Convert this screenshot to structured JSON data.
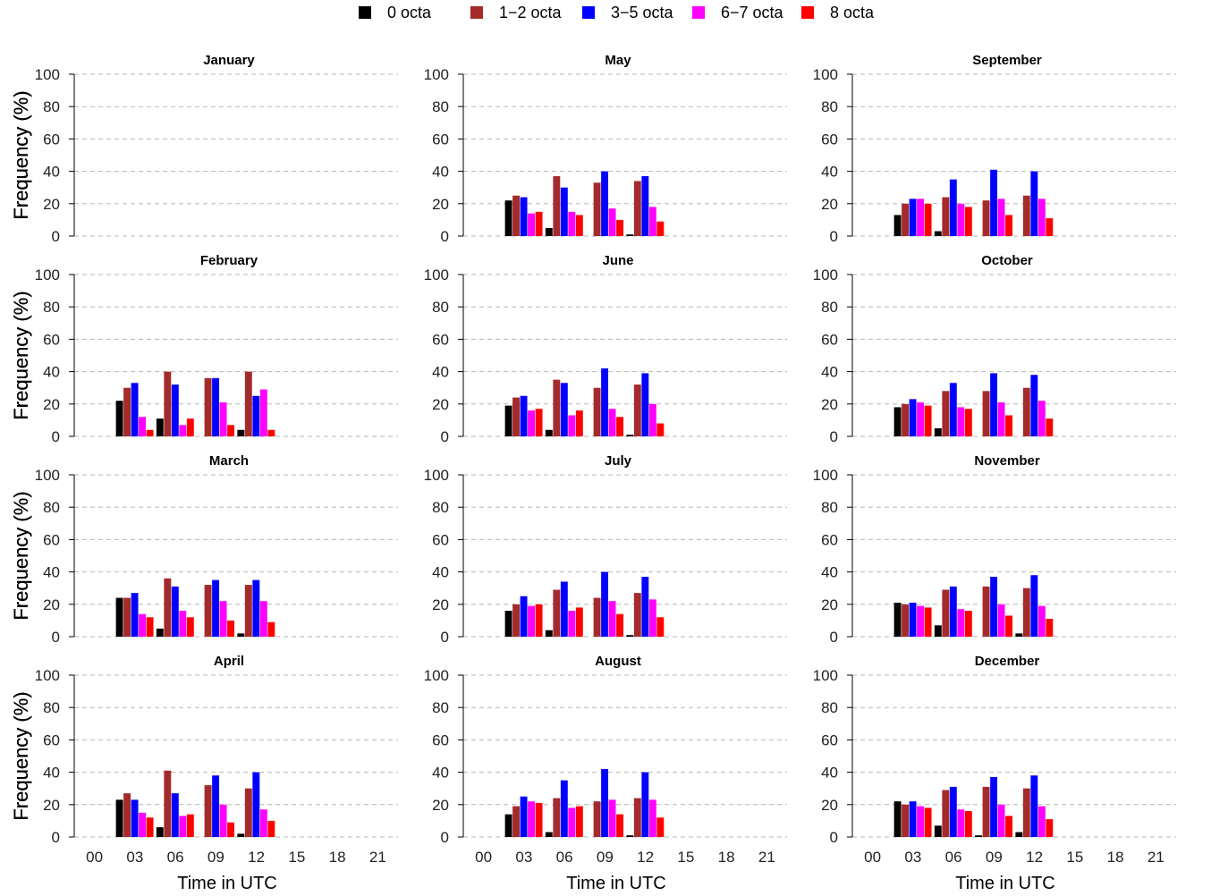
{
  "legend": {
    "placement": "top-center",
    "items": [
      {
        "label": "0 octa",
        "color": "#000000"
      },
      {
        "label": "1−2 octa",
        "color": "#a52a2a"
      },
      {
        "label": "3−5 octa",
        "color": "#0000ff"
      },
      {
        "label": "6−7 octa",
        "color": "#ff00ff"
      },
      {
        "label": "8 octa",
        "color": "#ff0000"
      }
    ]
  },
  "axes": {
    "ylabel": "Frequency (%)",
    "xlabel": "Time in UTC",
    "ylim": [
      0,
      100
    ],
    "yticks": [
      0,
      20,
      40,
      60,
      80,
      100
    ],
    "xticks": [
      "00",
      "03",
      "06",
      "09",
      "12",
      "15",
      "18",
      "21"
    ]
  },
  "chart_data": [
    {
      "type": "bar",
      "title": "January",
      "categories": [
        "00",
        "03",
        "06",
        "09",
        "12",
        "15",
        "18",
        "21"
      ],
      "series": []
    },
    {
      "type": "bar",
      "title": "February",
      "categories": [
        "00",
        "03",
        "06",
        "09",
        "12",
        "15",
        "18",
        "21"
      ],
      "series": [
        {
          "name": "0 octa",
          "values": [
            null,
            22,
            11,
            0,
            4,
            null,
            null,
            null
          ]
        },
        {
          "name": "1−2 octa",
          "values": [
            null,
            30,
            40,
            36,
            40,
            null,
            null,
            null
          ]
        },
        {
          "name": "3−5 octa",
          "values": [
            null,
            33,
            32,
            36,
            25,
            null,
            null,
            null
          ]
        },
        {
          "name": "6−7 octa",
          "values": [
            null,
            12,
            7,
            21,
            29,
            null,
            null,
            null
          ]
        },
        {
          "name": "8 octa",
          "values": [
            null,
            4,
            11,
            7,
            4,
            null,
            null,
            null
          ]
        }
      ]
    },
    {
      "type": "bar",
      "title": "March",
      "categories": [
        "00",
        "03",
        "06",
        "09",
        "12",
        "15",
        "18",
        "21"
      ],
      "series": [
        {
          "name": "0 octa",
          "values": [
            null,
            24,
            5,
            0,
            2,
            null,
            null,
            null
          ]
        },
        {
          "name": "1−2 octa",
          "values": [
            null,
            24,
            36,
            32,
            32,
            null,
            null,
            null
          ]
        },
        {
          "name": "3−5 octa",
          "values": [
            null,
            27,
            31,
            35,
            35,
            null,
            null,
            null
          ]
        },
        {
          "name": "6−7 octa",
          "values": [
            null,
            14,
            16,
            22,
            22,
            null,
            null,
            null
          ]
        },
        {
          "name": "8 octa",
          "values": [
            null,
            12,
            12,
            10,
            9,
            null,
            null,
            null
          ]
        }
      ]
    },
    {
      "type": "bar",
      "title": "April",
      "categories": [
        "00",
        "03",
        "06",
        "09",
        "12",
        "15",
        "18",
        "21"
      ],
      "series": [
        {
          "name": "0 octa",
          "values": [
            null,
            23,
            6,
            0,
            2,
            null,
            null,
            null
          ]
        },
        {
          "name": "1−2 octa",
          "values": [
            null,
            27,
            41,
            32,
            30,
            null,
            null,
            null
          ]
        },
        {
          "name": "3−5 octa",
          "values": [
            null,
            23,
            27,
            38,
            40,
            null,
            null,
            null
          ]
        },
        {
          "name": "6−7 octa",
          "values": [
            null,
            15,
            13,
            20,
            17,
            null,
            null,
            null
          ]
        },
        {
          "name": "8 octa",
          "values": [
            null,
            12,
            14,
            9,
            10,
            null,
            null,
            null
          ]
        }
      ]
    },
    {
      "type": "bar",
      "title": "May",
      "categories": [
        "00",
        "03",
        "06",
        "09",
        "12",
        "15",
        "18",
        "21"
      ],
      "series": [
        {
          "name": "0 octa",
          "values": [
            null,
            22,
            5,
            0,
            1,
            null,
            null,
            null
          ]
        },
        {
          "name": "1−2 octa",
          "values": [
            null,
            25,
            37,
            33,
            34,
            null,
            null,
            null
          ]
        },
        {
          "name": "3−5 octa",
          "values": [
            null,
            24,
            30,
            40,
            37,
            null,
            null,
            null
          ]
        },
        {
          "name": "6−7 octa",
          "values": [
            null,
            14,
            15,
            17,
            18,
            null,
            null,
            null
          ]
        },
        {
          "name": "8 octa",
          "values": [
            null,
            15,
            13,
            10,
            9,
            null,
            null,
            null
          ]
        }
      ]
    },
    {
      "type": "bar",
      "title": "June",
      "categories": [
        "00",
        "03",
        "06",
        "09",
        "12",
        "15",
        "18",
        "21"
      ],
      "series": [
        {
          "name": "0 octa",
          "values": [
            null,
            19,
            4,
            0,
            1,
            null,
            null,
            null
          ]
        },
        {
          "name": "1−2 octa",
          "values": [
            null,
            24,
            35,
            30,
            32,
            null,
            null,
            null
          ]
        },
        {
          "name": "3−5 octa",
          "values": [
            null,
            25,
            33,
            42,
            39,
            null,
            null,
            null
          ]
        },
        {
          "name": "6−7 octa",
          "values": [
            null,
            16,
            13,
            17,
            20,
            null,
            null,
            null
          ]
        },
        {
          "name": "8 octa",
          "values": [
            null,
            17,
            16,
            12,
            8,
            null,
            null,
            null
          ]
        }
      ]
    },
    {
      "type": "bar",
      "title": "July",
      "categories": [
        "00",
        "03",
        "06",
        "09",
        "12",
        "15",
        "18",
        "21"
      ],
      "series": [
        {
          "name": "0 octa",
          "values": [
            null,
            16,
            4,
            0,
            1,
            null,
            null,
            null
          ]
        },
        {
          "name": "1−2 octa",
          "values": [
            null,
            20,
            29,
            24,
            27,
            null,
            null,
            null
          ]
        },
        {
          "name": "3−5 octa",
          "values": [
            null,
            25,
            34,
            40,
            37,
            null,
            null,
            null
          ]
        },
        {
          "name": "6−7 octa",
          "values": [
            null,
            19,
            16,
            22,
            23,
            null,
            null,
            null
          ]
        },
        {
          "name": "8 octa",
          "values": [
            null,
            20,
            18,
            14,
            12,
            null,
            null,
            null
          ]
        }
      ]
    },
    {
      "type": "bar",
      "title": "August",
      "categories": [
        "00",
        "03",
        "06",
        "09",
        "12",
        "15",
        "18",
        "21"
      ],
      "series": [
        {
          "name": "0 octa",
          "values": [
            null,
            14,
            3,
            0,
            1,
            null,
            null,
            null
          ]
        },
        {
          "name": "1−2 octa",
          "values": [
            null,
            19,
            24,
            22,
            24,
            null,
            null,
            null
          ]
        },
        {
          "name": "3−5 octa",
          "values": [
            null,
            25,
            35,
            42,
            40,
            null,
            null,
            null
          ]
        },
        {
          "name": "6−7 octa",
          "values": [
            null,
            22,
            18,
            23,
            23,
            null,
            null,
            null
          ]
        },
        {
          "name": "8 octa",
          "values": [
            null,
            21,
            19,
            14,
            12,
            null,
            null,
            null
          ]
        }
      ]
    },
    {
      "type": "bar",
      "title": "September",
      "categories": [
        "00",
        "03",
        "06",
        "09",
        "12",
        "15",
        "18",
        "21"
      ],
      "series": [
        {
          "name": "0 octa",
          "values": [
            null,
            13,
            3,
            0,
            0,
            null,
            null,
            null
          ]
        },
        {
          "name": "1−2 octa",
          "values": [
            null,
            20,
            24,
            22,
            25,
            null,
            null,
            null
          ]
        },
        {
          "name": "3−5 octa",
          "values": [
            null,
            23,
            35,
            41,
            40,
            null,
            null,
            null
          ]
        },
        {
          "name": "6−7 octa",
          "values": [
            null,
            23,
            20,
            23,
            23,
            null,
            null,
            null
          ]
        },
        {
          "name": "8 octa",
          "values": [
            null,
            20,
            18,
            13,
            11,
            null,
            null,
            null
          ]
        }
      ]
    },
    {
      "type": "bar",
      "title": "October",
      "categories": [
        "00",
        "03",
        "06",
        "09",
        "12",
        "15",
        "18",
        "21"
      ],
      "series": [
        {
          "name": "0 octa",
          "values": [
            null,
            18,
            5,
            0,
            0,
            null,
            null,
            null
          ]
        },
        {
          "name": "1−2 octa",
          "values": [
            null,
            20,
            28,
            28,
            30,
            null,
            null,
            null
          ]
        },
        {
          "name": "3−5 octa",
          "values": [
            null,
            23,
            33,
            39,
            38,
            null,
            null,
            null
          ]
        },
        {
          "name": "6−7 octa",
          "values": [
            null,
            21,
            18,
            21,
            22,
            null,
            null,
            null
          ]
        },
        {
          "name": "8 octa",
          "values": [
            null,
            19,
            17,
            13,
            11,
            null,
            null,
            null
          ]
        }
      ]
    },
    {
      "type": "bar",
      "title": "November",
      "categories": [
        "00",
        "03",
        "06",
        "09",
        "12",
        "15",
        "18",
        "21"
      ],
      "series": [
        {
          "name": "0 octa",
          "values": [
            null,
            21,
            7,
            0,
            2,
            null,
            null,
            null
          ]
        },
        {
          "name": "1−2 octa",
          "values": [
            null,
            20,
            29,
            31,
            30,
            null,
            null,
            null
          ]
        },
        {
          "name": "3−5 octa",
          "values": [
            null,
            21,
            31,
            37,
            38,
            null,
            null,
            null
          ]
        },
        {
          "name": "6−7 octa",
          "values": [
            null,
            19,
            17,
            20,
            19,
            null,
            null,
            null
          ]
        },
        {
          "name": "8 octa",
          "values": [
            null,
            18,
            16,
            13,
            11,
            null,
            null,
            null
          ]
        }
      ]
    },
    {
      "type": "bar",
      "title": "December",
      "categories": [
        "00",
        "03",
        "06",
        "09",
        "12",
        "15",
        "18",
        "21"
      ],
      "series": [
        {
          "name": "0 octa",
          "values": [
            null,
            22,
            7,
            1,
            3,
            null,
            null,
            null
          ]
        },
        {
          "name": "1−2 octa",
          "values": [
            null,
            20,
            29,
            31,
            30,
            null,
            null,
            null
          ]
        },
        {
          "name": "3−5 octa",
          "values": [
            null,
            22,
            31,
            37,
            38,
            null,
            null,
            null
          ]
        },
        {
          "name": "6−7 octa",
          "values": [
            null,
            19,
            17,
            20,
            19,
            null,
            null,
            null
          ]
        },
        {
          "name": "8 octa",
          "values": [
            null,
            18,
            16,
            13,
            11,
            null,
            null,
            null
          ]
        }
      ]
    }
  ]
}
